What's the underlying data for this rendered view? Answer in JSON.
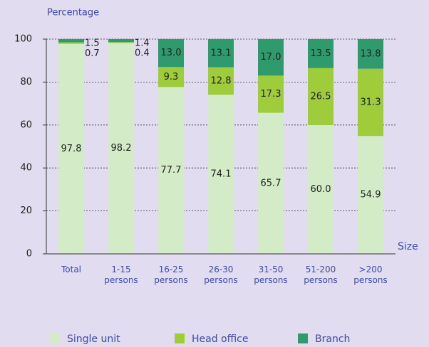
{
  "chart_data": {
    "type": "stacked_bar",
    "y_label": "Percentage",
    "x_label": "Size",
    "categories": [
      "Total",
      "1-15 persons",
      "16-25 persons",
      "26-30 persons",
      "31-50 persons",
      "51-200 persons",
      ">200 persons"
    ],
    "series": [
      {
        "name": "Single unit",
        "color": "#d3ebc7",
        "values": [
          97.8,
          98.2,
          77.7,
          74.1,
          65.7,
          60.0,
          54.9
        ],
        "value_labels": [
          "97.8",
          "98.2",
          "77.7",
          "74.1",
          "65.7",
          "60.0",
          "54.9"
        ]
      },
      {
        "name": "Head office",
        "color": "#9fcc3b",
        "values": [
          0.7,
          0.4,
          9.3,
          12.8,
          17.3,
          26.5,
          31.3
        ],
        "value_labels": [
          "0.7",
          "0.4",
          "9.3",
          "12.8",
          "17.3",
          "26.5",
          "31.3"
        ]
      },
      {
        "name": "Branch",
        "color": "#2f9b6c",
        "values": [
          1.5,
          1.4,
          13.0,
          13.1,
          17.0,
          13.5,
          13.8
        ],
        "value_labels": [
          "1.5",
          "1.4",
          "13.0",
          "13.1",
          "17.0",
          "13.5",
          "13.8"
        ]
      }
    ],
    "ylim": [
      0,
      100
    ],
    "yticks": [
      0,
      20,
      40,
      60,
      80,
      100
    ],
    "grid": true,
    "legend": "bottom"
  }
}
